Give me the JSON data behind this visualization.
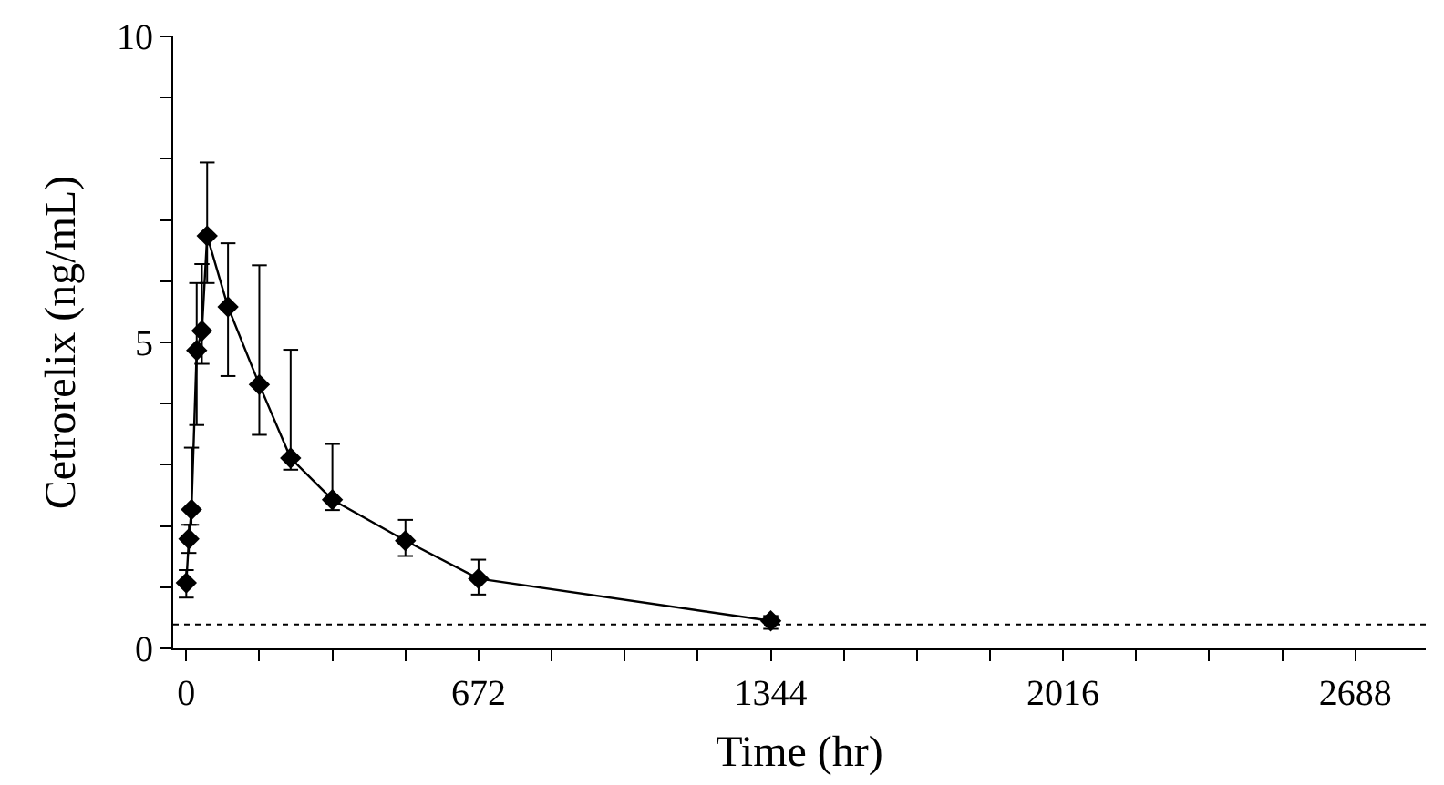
{
  "chart_data": {
    "type": "line",
    "xlabel": "Time (hr)",
    "ylabel": "Cetrorelix (ng/mL)",
    "x": [
      0,
      6,
      12,
      24,
      36,
      48,
      96,
      168,
      240,
      336,
      504,
      672,
      1344
    ],
    "series": [
      {
        "color": "#000000",
        "values": [
          1.07,
          1.79,
          2.27,
          4.87,
          5.19,
          6.74,
          5.58,
          4.31,
          3.11,
          2.43,
          1.76,
          1.14,
          0.45
        ],
        "errors": [
          [
            0.83,
            1.28
          ],
          [
            1.56,
            2.02
          ],
          [
            2.02,
            3.28
          ],
          [
            3.65,
            5.97
          ],
          [
            4.65,
            6.28
          ],
          [
            5.97,
            7.94
          ],
          [
            4.45,
            6.62
          ],
          [
            3.49,
            6.26
          ],
          [
            2.92,
            4.88
          ],
          [
            2.26,
            3.34
          ],
          [
            1.51,
            2.1
          ],
          [
            0.88,
            1.45
          ],
          [
            0.32,
            0.53
          ]
        ]
      }
    ],
    "xlim": [
      -30,
      2850
    ],
    "ylim": [
      0,
      10
    ],
    "xticks": [
      0,
      {
        "value": 168,
        "label": null
      },
      {
        "value": 336,
        "label": null
      },
      {
        "value": 504,
        "label": null
      },
      672,
      {
        "value": 840,
        "label": null
      },
      {
        "value": 1008,
        "label": null
      },
      {
        "value": 1176,
        "label": null
      },
      1344,
      {
        "value": 1512,
        "label": null
      },
      {
        "value": 1680,
        "label": null
      },
      {
        "value": 1848,
        "label": null
      },
      2016,
      {
        "value": 2184,
        "label": null
      },
      {
        "value": 2352,
        "label": null
      },
      {
        "value": 2520,
        "label": null
      },
      2688
    ],
    "yticks": [
      0,
      {
        "value": 1,
        "label": null
      },
      {
        "value": 2,
        "label": null
      },
      {
        "value": 3,
        "label": null
      },
      {
        "value": 4,
        "label": null
      },
      5,
      {
        "value": 6,
        "label": null
      },
      {
        "value": 7,
        "label": null
      },
      {
        "value": 8,
        "label": null
      },
      {
        "value": 9,
        "label": null
      },
      10
    ],
    "ref_lines": [
      {
        "axis": "y",
        "value": 0.39,
        "line_style": "dotted",
        "color": "#000000"
      }
    ],
    "marker": "diamond",
    "line_style": "solid",
    "grid": false,
    "legend": false
  }
}
